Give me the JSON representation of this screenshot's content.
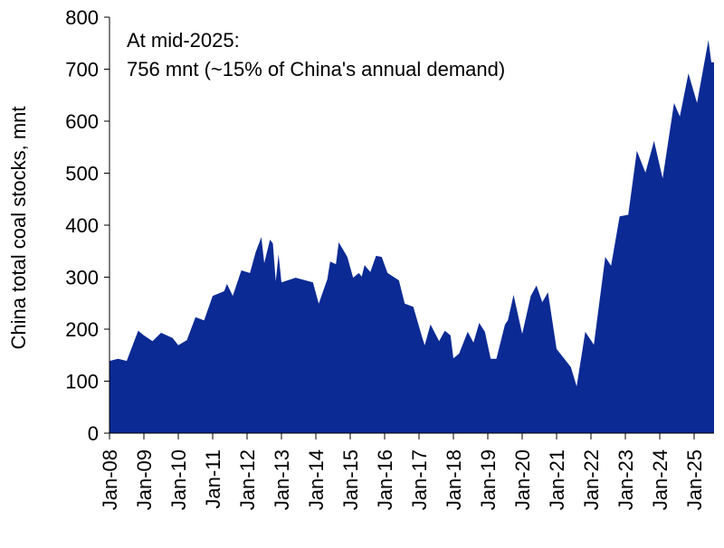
{
  "chart_data": {
    "type": "area",
    "title": "",
    "ylabel": "China total coal stocks, mnt",
    "xlabel": "",
    "ylim": [
      0,
      800
    ],
    "yticks": [
      0,
      100,
      200,
      300,
      400,
      500,
      600,
      700,
      800
    ],
    "xlim": [
      "2008-01",
      "2025-07"
    ],
    "xticks": [
      "Jan-08",
      "Jan-09",
      "Jan-10",
      "Jan-11",
      "Jan-12",
      "Jan-13",
      "Jan-14",
      "Jan-15",
      "Jan-16",
      "Jan-17",
      "Jan-18",
      "Jan-19",
      "Jan-20",
      "Jan-21",
      "Jan-22",
      "Jan-23",
      "Jan-24",
      "Jan-25"
    ],
    "grid": false,
    "fill_color": "#0b2a94",
    "annotation": [
      "At mid-2025:",
      "756 mnt (~15% of China's annual demand)"
    ],
    "series": [
      {
        "x": [
          "2008-01",
          "2008-04",
          "2008-07",
          "2008-11",
          "2009-01",
          "2009-04",
          "2009-07",
          "2009-11",
          "2010-01",
          "2010-04",
          "2010-07",
          "2010-10",
          "2011-01",
          "2011-05",
          "2011-06",
          "2011-08",
          "2011-11",
          "2012-02",
          "2012-04",
          "2012-06",
          "2012-07",
          "2012-09",
          "2012-10",
          "2012-11",
          "2012-12",
          "2013-01",
          "2013-06",
          "2013-12",
          "2014-02",
          "2014-05",
          "2014-06",
          "2014-08",
          "2014-09",
          "2014-12",
          "2015-02",
          "2015-04",
          "2015-05",
          "2015-06",
          "2015-08",
          "2015-10",
          "2015-12",
          "2016-02",
          "2016-06",
          "2016-08",
          "2016-11",
          "2017-02",
          "2017-03",
          "2017-05",
          "2017-08",
          "2017-10",
          "2017-12",
          "2018-01",
          "2018-03",
          "2018-06",
          "2018-08",
          "2018-10",
          "2018-12",
          "2019-02",
          "2019-04",
          "2019-07",
          "2019-08",
          "2019-10",
          "2020-01",
          "2020-04",
          "2020-06",
          "2020-08",
          "2020-10",
          "2021-01",
          "2021-03",
          "2021-06",
          "2021-08",
          "2021-11",
          "2022-02",
          "2022-06",
          "2022-08",
          "2022-11",
          "2023-02",
          "2023-05",
          "2023-08",
          "2023-11",
          "2024-02",
          "2024-06",
          "2024-08",
          "2024-11",
          "2025-02",
          "2025-06",
          "2025-07"
        ],
        "values": [
          139,
          143,
          139,
          197,
          188,
          177,
          193,
          183,
          169,
          179,
          223,
          217,
          264,
          273,
          287,
          264,
          313,
          308,
          348,
          377,
          327,
          372,
          365,
          292,
          344,
          290,
          299,
          290,
          249,
          296,
          330,
          325,
          367,
          339,
          299,
          308,
          301,
          323,
          310,
          341,
          339,
          308,
          294,
          249,
          243,
          186,
          169,
          209,
          177,
          197,
          188,
          144,
          153,
          195,
          174,
          212,
          195,
          143,
          143,
          209,
          217,
          266,
          191,
          264,
          284,
          252,
          271,
          162,
          148,
          127,
          90,
          195,
          170,
          339,
          322,
          417,
          420,
          543,
          501,
          562,
          490,
          635,
          609,
          692,
          635,
          756,
          713
        ]
      }
    ]
  }
}
